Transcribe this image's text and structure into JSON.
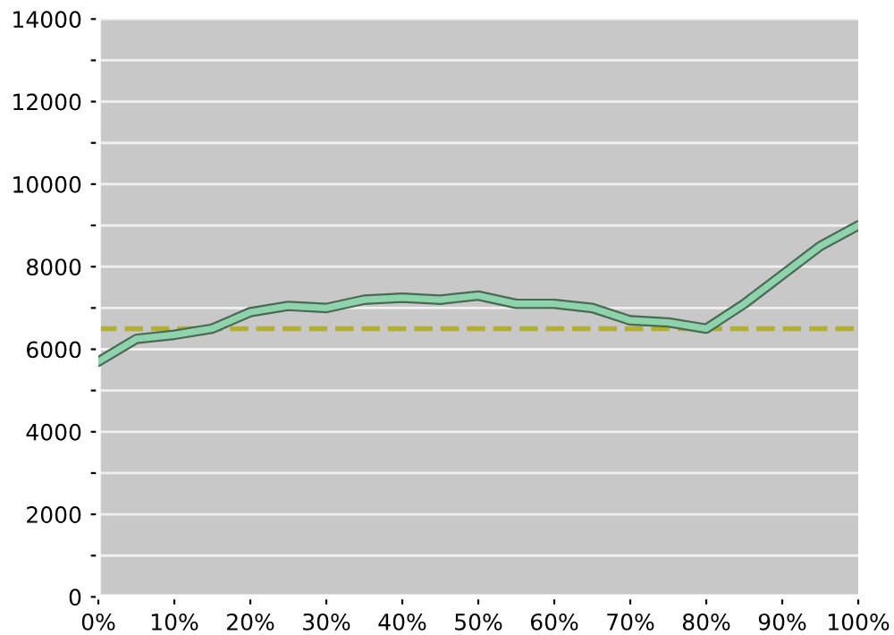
{
  "chart_data": {
    "type": "line",
    "x": [
      0,
      5,
      10,
      15,
      20,
      25,
      30,
      35,
      40,
      45,
      50,
      55,
      60,
      65,
      70,
      75,
      80,
      85,
      90,
      95,
      100
    ],
    "series": [
      {
        "color": "#8fd3ac",
        "values": [
          5700,
          6250,
          6350,
          6500,
          6900,
          7050,
          7000,
          7200,
          7250,
          7200,
          7300,
          7100,
          7100,
          7000,
          6700,
          6650,
          6500,
          7100,
          7800,
          8500,
          9000
        ]
      }
    ],
    "xlim": [
      0,
      100
    ],
    "xticks": [
      {
        "value": 0,
        "label": "0%"
      },
      {
        "value": 10,
        "label": "10%"
      },
      {
        "value": 20,
        "label": "20%"
      },
      {
        "value": 30,
        "label": "30%"
      },
      {
        "value": 40,
        "label": "40%"
      },
      {
        "value": 50,
        "label": "50%"
      },
      {
        "value": 60,
        "label": "60%"
      },
      {
        "value": 70,
        "label": "70%"
      },
      {
        "value": 80,
        "label": "80%"
      },
      {
        "value": 90,
        "label": "90%"
      },
      {
        "value": 100,
        "label": "100%"
      }
    ],
    "ylim": [
      0,
      14000
    ],
    "yticks": [
      0,
      {
        "value": 1000,
        "label": null
      },
      2000,
      {
        "value": 3000,
        "label": null
      },
      4000,
      {
        "value": 5000,
        "label": null
      },
      6000,
      {
        "value": 7000,
        "label": null
      },
      8000,
      {
        "value": 9000,
        "label": null
      },
      10000,
      {
        "value": 11000,
        "label": null
      },
      12000,
      {
        "value": 13000,
        "label": null
      },
      14000
    ],
    "grid": "y",
    "marker": "none",
    "line_style": "solid",
    "ref_lines": [
      {
        "axis": "y",
        "value": 6500,
        "color": "#b5b02a",
        "line_style": "dashed"
      }
    ]
  }
}
